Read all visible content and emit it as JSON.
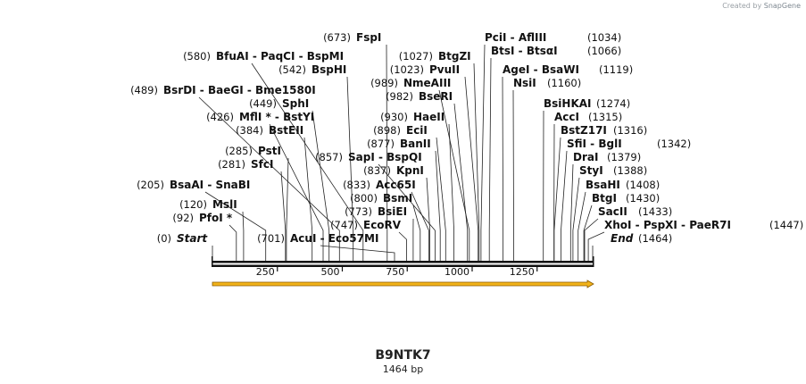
{
  "credit": {
    "prefix": "Created by",
    "brand": "SnapGene"
  },
  "title": "B9NTK7",
  "size_label": "1464 bp",
  "colors": {
    "backbone": "#111111",
    "feature_fill": "#f2b31a",
    "feature_border": "#8a5a00"
  },
  "axis": {
    "total_bp": 1464,
    "ticks": [
      {
        "bp": 250,
        "label": "250"
      },
      {
        "bp": 500,
        "label": "500"
      },
      {
        "bp": 750,
        "label": "750"
      },
      {
        "bp": 1000,
        "label": "1000"
      },
      {
        "bp": 1250,
        "label": "1250"
      }
    ]
  },
  "feature": {
    "start": 0,
    "end": 1464,
    "direction": "forward"
  },
  "sites": [
    {
      "pos": "(0)",
      "name": "Start",
      "style": "italic",
      "bp": 0
    },
    {
      "pos": "(92)",
      "name": "PfoI *",
      "bp": 92
    },
    {
      "pos": "(120)",
      "name": "MslI",
      "bp": 120
    },
    {
      "pos": "(205)",
      "name": "BsaAI  -  SnaBI",
      "bp": 205
    },
    {
      "pos": "(281)",
      "name": "SfcI",
      "bp": 281
    },
    {
      "pos": "(285)",
      "name": "PstI",
      "bp": 285
    },
    {
      "pos": "(384)",
      "name": "BstEII",
      "bp": 384
    },
    {
      "pos": "(426)",
      "name": "MflI *  -  BstYI",
      "bp": 426
    },
    {
      "pos": "(449)",
      "name": "SphI",
      "bp": 449
    },
    {
      "pos": "(489)",
      "name": "BsrDI  -  BaeGI  -  Bme1580I",
      "bp": 489
    },
    {
      "pos": "(542)",
      "name": "BspHI",
      "bp": 542
    },
    {
      "pos": "(580)",
      "name": "BfuAI  -  PaqCI  -  BspMI",
      "bp": 580
    },
    {
      "pos": "(673)",
      "name": "FspI",
      "bp": 673
    },
    {
      "pos": "(701)",
      "name": "AcuI  -  Eco57MI",
      "bp": 701
    },
    {
      "pos": "(747)",
      "name": "EcoRV",
      "bp": 747
    },
    {
      "pos": "(773)",
      "name": "BsiEI",
      "bp": 773
    },
    {
      "pos": "(800)",
      "name": "BsmI",
      "bp": 800
    },
    {
      "pos": "(833)",
      "name": "Acc65I",
      "bp": 833
    },
    {
      "pos": "(837)",
      "name": "KpnI",
      "bp": 837
    },
    {
      "pos": "(857)",
      "name": "SapI  -  BspQI",
      "bp": 857
    },
    {
      "pos": "(877)",
      "name": "BanII",
      "bp": 877
    },
    {
      "pos": "(898)",
      "name": "EciI",
      "bp": 898
    },
    {
      "pos": "(930)",
      "name": "HaeII",
      "bp": 930
    },
    {
      "pos": "(982)",
      "name": "BseRI",
      "bp": 982
    },
    {
      "pos": "(989)",
      "name": "NmeAIII",
      "bp": 989
    },
    {
      "pos": "(1023)",
      "name": "PvuII",
      "bp": 1023
    },
    {
      "pos": "(1027)",
      "name": "BtgZI",
      "bp": 1027
    },
    {
      "pos": "(1034)",
      "name": "PciI  -  AflIII",
      "bp": 1034
    },
    {
      "pos": "(1066)",
      "name": "BtsI  -  BtsαI",
      "bp": 1066
    },
    {
      "pos": "(1119)",
      "name": "AgeI  -  BsaWI",
      "bp": 1119
    },
    {
      "pos": "(1160)",
      "name": "NsiI",
      "bp": 1160
    },
    {
      "pos": "(1274)",
      "name": "BsiHKAI",
      "bp": 1274
    },
    {
      "pos": "(1315)",
      "name": "AccI",
      "bp": 1315
    },
    {
      "pos": "(1316)",
      "name": "BstZ17I",
      "bp": 1316
    },
    {
      "pos": "(1342)",
      "name": "SfiI  -  BglI",
      "bp": 1342
    },
    {
      "pos": "(1379)",
      "name": "DraI",
      "bp": 1379
    },
    {
      "pos": "(1388)",
      "name": "StyI",
      "bp": 1388
    },
    {
      "pos": "(1408)",
      "name": "BsaHI",
      "bp": 1408
    },
    {
      "pos": "(1430)",
      "name": "BtgI",
      "bp": 1430
    },
    {
      "pos": "(1433)",
      "name": "SacII",
      "bp": 1433
    },
    {
      "pos": "(1447)",
      "name": "XhoI  -  PspXI  -  PaeR7I",
      "bp": 1447
    },
    {
      "pos": "(1464)",
      "name": "End",
      "style": "italic",
      "bp": 1464
    }
  ]
}
